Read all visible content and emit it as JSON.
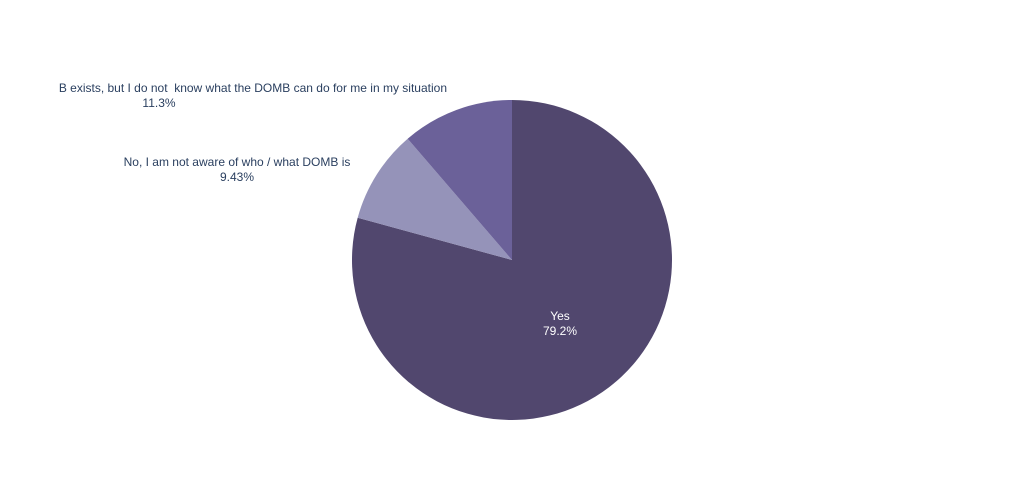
{
  "chart_data": {
    "type": "pie",
    "categories": [
      "Yes",
      "No, I am not aware of who / what DOMB is",
      "B exists, but I do not  know what the DOMB can do for me in my situation"
    ],
    "values": [
      79.2,
      9.43,
      11.3
    ],
    "value_labels": [
      "79.2%",
      "9.43%",
      "11.3%"
    ],
    "colors": [
      "#51476e",
      "#9593b9",
      "#6b6199"
    ]
  }
}
